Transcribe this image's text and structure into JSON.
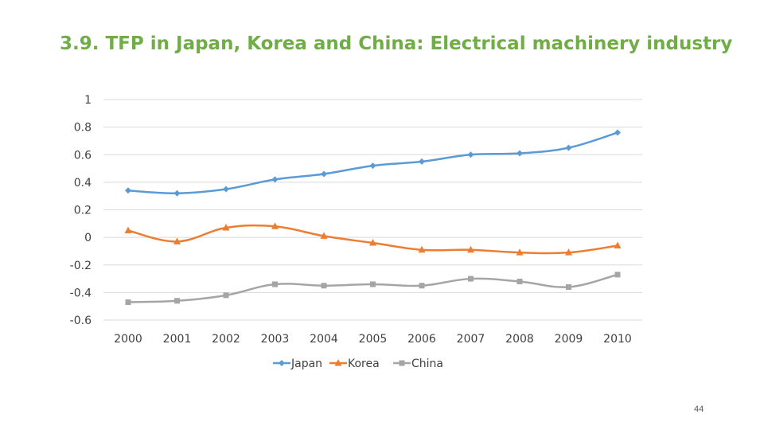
{
  "slide": {
    "title": "3.9. TFP in Japan, Korea and China: Electrical machinery industry",
    "page_number": "44"
  },
  "chart_data": {
    "type": "line",
    "title": "",
    "xlabel": "",
    "ylabel": "",
    "categories": [
      "2000",
      "2001",
      "2002",
      "2003",
      "2004",
      "2005",
      "2006",
      "2007",
      "2008",
      "2009",
      "2010"
    ],
    "ylim": [
      -0.6,
      1
    ],
    "yticks": [
      "1",
      "0.8",
      "0.6",
      "0.4",
      "0.2",
      "0",
      "-0.2",
      "-0.4",
      "-0.6"
    ],
    "ytick_values": [
      1,
      0.8,
      0.6,
      0.4,
      0.2,
      0,
      -0.2,
      -0.4,
      -0.6
    ],
    "grid": true,
    "legend_position": "bottom",
    "series": [
      {
        "name": "Japan",
        "color": "#5b9bd5",
        "marker": "diamond",
        "values": [
          0.34,
          0.32,
          0.35,
          0.42,
          0.46,
          0.52,
          0.55,
          0.6,
          0.61,
          0.65,
          0.76
        ]
      },
      {
        "name": "Korea",
        "color": "#ed7d31",
        "marker": "triangle",
        "values": [
          0.05,
          -0.03,
          0.07,
          0.08,
          0.01,
          -0.04,
          -0.09,
          -0.09,
          -0.11,
          -0.11,
          -0.06
        ]
      },
      {
        "name": "China",
        "color": "#a5a5a5",
        "marker": "square",
        "values": [
          -0.47,
          -0.46,
          -0.42,
          -0.34,
          -0.35,
          -0.34,
          -0.35,
          -0.3,
          -0.32,
          -0.36,
          -0.27
        ]
      }
    ]
  }
}
